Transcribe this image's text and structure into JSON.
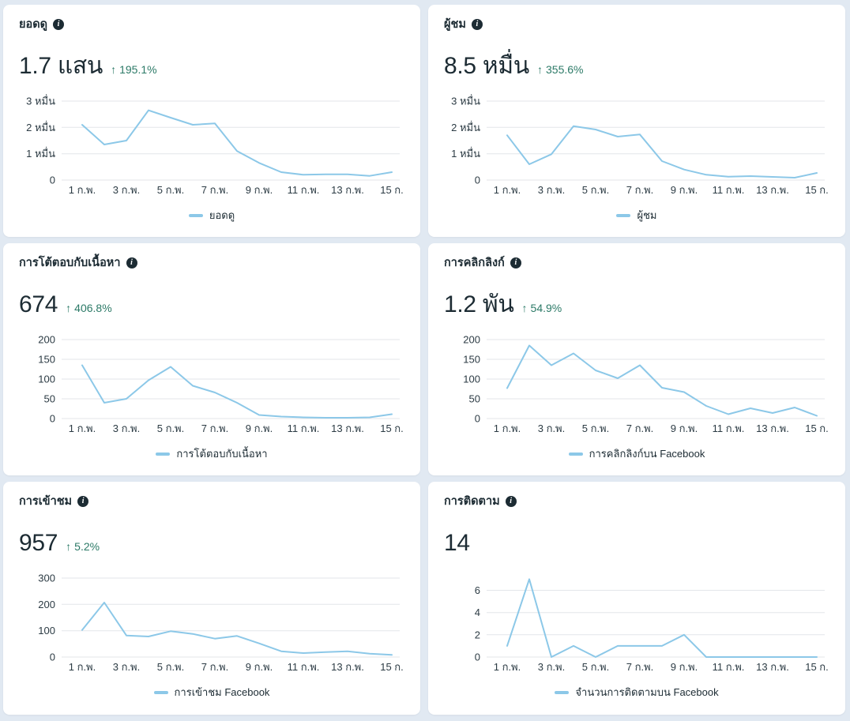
{
  "colors": {
    "page_background": "#e1e9f2",
    "card_background": "#ffffff",
    "title_text": "#1c2b33",
    "delta_positive_green": "#2c7a67",
    "chart_line_blue": "#8cc8e8",
    "gridline": "#e3e6ea",
    "axis_text": "#2c3b44"
  },
  "icons": {
    "info_glyph": "i",
    "up_arrow": "↑"
  },
  "cards": [
    {
      "title": "ยอดดู",
      "value": "1.7 แสน",
      "delta_arrow": "↑",
      "delta": "195.1%",
      "legend": "ยอดดู"
    },
    {
      "title": "ผู้ชม",
      "value": "8.5 หมื่น",
      "delta_arrow": "↑",
      "delta": "355.6%",
      "legend": "ผู้ชม"
    },
    {
      "title": "การโต้ตอบกับเนื้อหา",
      "value": "674",
      "delta_arrow": "↑",
      "delta": "406.8%",
      "legend": "การโต้ตอบกับเนื้อหา"
    },
    {
      "title": "การคลิกลิงก์",
      "value": "1.2 พัน",
      "delta_arrow": "↑",
      "delta": "54.9%",
      "legend": "การคลิกลิงก์บน Facebook"
    },
    {
      "title": "การเข้าชม",
      "value": "957",
      "delta_arrow": "↑",
      "delta": "5.2%",
      "legend": "การเข้าชม Facebook"
    },
    {
      "title": "การติดตาม",
      "value": "14",
      "legend": "จำนวนการติดตามบน Facebook"
    }
  ],
  "chart_data": [
    {
      "type": "line",
      "title": "ยอดดู",
      "legend": "ยอดดู",
      "xtick_labels": [
        "1 ก.พ.",
        "3 ก.พ.",
        "5 ก.พ.",
        "7 ก.พ.",
        "9 ก.พ.",
        "11 ก.พ.",
        "13 ก.พ.",
        "15 ก."
      ],
      "values": [
        21000,
        13500,
        15000,
        26500,
        23700,
        21000,
        21500,
        11000,
        6500,
        3000,
        2000,
        2200,
        2200,
        1600,
        3000
      ],
      "yticks": {
        "values": [
          0,
          10000,
          20000,
          30000
        ],
        "labels": [
          "0",
          "1 หมื่น",
          "2 หมื่น",
          "3 หมื่น"
        ]
      },
      "ylim": [
        0,
        30000
      ],
      "grid": "horizontal",
      "legend_position": "bottom"
    },
    {
      "type": "line",
      "title": "ผู้ชม",
      "legend": "ผู้ชม",
      "xtick_labels": [
        "1 ก.พ.",
        "3 ก.พ.",
        "5 ก.พ.",
        "7 ก.พ.",
        "9 ก.พ.",
        "11 ก.พ.",
        "13 ก.พ.",
        "15 ก."
      ],
      "values": [
        17000,
        6000,
        9800,
        20500,
        19200,
        16500,
        17300,
        7200,
        4000,
        2000,
        1300,
        1500,
        1200,
        900,
        2700
      ],
      "yticks": {
        "values": [
          0,
          10000,
          20000,
          30000
        ],
        "labels": [
          "0",
          "1 หมื่น",
          "2 หมื่น",
          "3 หมื่น"
        ]
      },
      "ylim": [
        0,
        30000
      ],
      "grid": "horizontal",
      "legend_position": "bottom"
    },
    {
      "type": "line",
      "title": "การโต้ตอบกับเนื้อหา",
      "legend": "การโต้ตอบกับเนื้อหา",
      "xtick_labels": [
        "1 ก.พ.",
        "3 ก.พ.",
        "5 ก.พ.",
        "7 ก.พ.",
        "9 ก.พ.",
        "11 ก.พ.",
        "13 ก.พ.",
        "15 ก."
      ],
      "values": [
        135,
        40,
        50,
        97,
        131,
        83,
        66,
        40,
        9,
        5,
        3,
        2,
        2,
        3,
        11
      ],
      "yticks": {
        "values": [
          0,
          50,
          100,
          150,
          200
        ],
        "labels": [
          "0",
          "50",
          "100",
          "150",
          "200"
        ]
      },
      "ylim": [
        0,
        200
      ],
      "grid": "horizontal",
      "legend_position": "bottom"
    },
    {
      "type": "line",
      "title": "การคลิกลิงก์",
      "legend": "การคลิกลิงก์บน Facebook",
      "xtick_labels": [
        "1 ก.พ.",
        "3 ก.พ.",
        "5 ก.พ.",
        "7 ก.พ.",
        "9 ก.พ.",
        "11 ก.พ.",
        "13 ก.พ.",
        "15 ก."
      ],
      "values": [
        77,
        185,
        135,
        165,
        122,
        102,
        135,
        78,
        67,
        32,
        11,
        26,
        14,
        28,
        7
      ],
      "yticks": {
        "values": [
          0,
          50,
          100,
          150,
          200
        ],
        "labels": [
          "0",
          "50",
          "100",
          "150",
          "200"
        ]
      },
      "ylim": [
        0,
        200
      ],
      "grid": "horizontal",
      "legend_position": "bottom"
    },
    {
      "type": "line",
      "title": "การเข้าชม",
      "legend": "การเข้าชม Facebook",
      "xtick_labels": [
        "1 ก.พ.",
        "3 ก.พ.",
        "5 ก.พ.",
        "7 ก.พ.",
        "9 ก.พ.",
        "11 ก.พ.",
        "13 ก.พ.",
        "15 ก."
      ],
      "values": [
        103,
        207,
        82,
        78,
        98,
        88,
        70,
        80,
        52,
        22,
        15,
        19,
        22,
        13,
        8
      ],
      "yticks": {
        "values": [
          0,
          100,
          200,
          300
        ],
        "labels": [
          "0",
          "100",
          "200",
          "300"
        ]
      },
      "ylim": [
        0,
        300
      ],
      "grid": "horizontal",
      "legend_position": "bottom"
    },
    {
      "type": "line",
      "title": "การติดตาม",
      "legend": "จำนวนการติดตามบน Facebook",
      "xtick_labels": [
        "1 ก.พ.",
        "3 ก.พ.",
        "5 ก.พ.",
        "7 ก.พ.",
        "9 ก.พ.",
        "11 ก.พ.",
        "13 ก.พ.",
        "15 ก."
      ],
      "values": [
        1,
        7,
        0,
        1,
        0,
        1,
        1,
        1,
        2,
        0,
        0,
        0,
        0,
        0,
        0
      ],
      "yticks": {
        "values": [
          0,
          2,
          4,
          6
        ],
        "labels": [
          "0",
          "2",
          "4",
          "6"
        ]
      },
      "ylim": [
        0,
        7
      ],
      "grid": "horizontal",
      "legend_position": "bottom"
    }
  ]
}
